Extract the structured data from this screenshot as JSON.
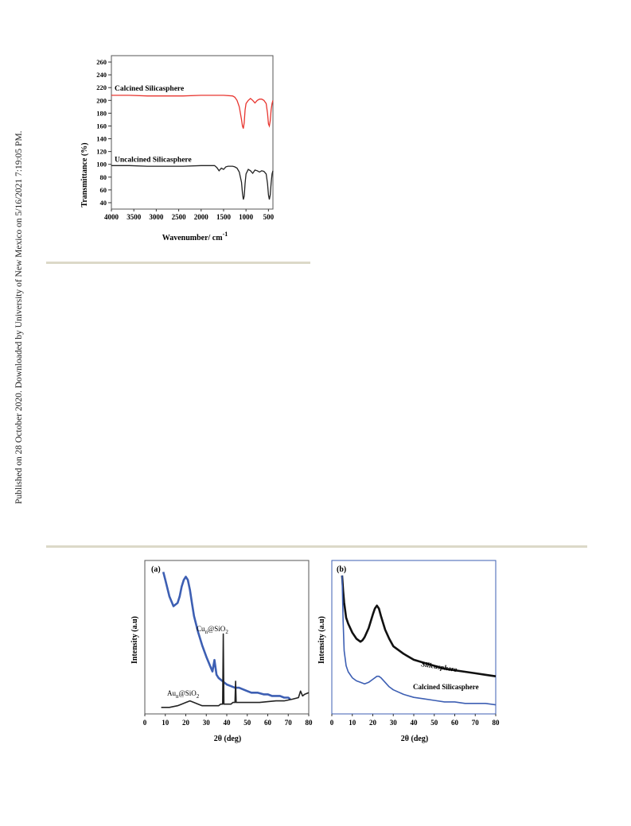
{
  "sidenote": "Published on 28 October 2020. Downloaded by University of New Mexico on 5/16/2021 7:19:05 PM.",
  "chart_data": [
    {
      "type": "line",
      "xlabel": "Wavenumber/ cm",
      "xlabel_sup": "-1",
      "ylabel": "Transmittance (%)",
      "xlim": [
        4000,
        400
      ],
      "ylim": [
        30,
        270
      ],
      "xticks": [
        4000,
        3500,
        3000,
        2500,
        2000,
        1500,
        1000,
        500
      ],
      "xtick_labels": [
        "4000",
        "3500",
        "3000",
        "2500",
        "2000",
        "1500",
        "1000",
        "500"
      ],
      "yticks": [
        40,
        60,
        80,
        100,
        120,
        140,
        160,
        180,
        200,
        220,
        240,
        260
      ],
      "ytick_labels": [
        "40",
        "60",
        "80",
        "100",
        "120",
        "140",
        "160",
        "180",
        "200",
        "220",
        "240",
        "260"
      ],
      "grid": false,
      "series": [
        {
          "name": "Calcined Silicasphere",
          "color": "#e8352f",
          "x": [
            4000,
            3600,
            3200,
            2800,
            2400,
            2000,
            1700,
            1500,
            1300,
            1250,
            1200,
            1150,
            1100,
            1080,
            1060,
            1040,
            1020,
            1000,
            950,
            900,
            850,
            800,
            750,
            700,
            650,
            600,
            550,
            520,
            500,
            480,
            460,
            440,
            420,
            400
          ],
          "y": [
            208,
            208,
            207,
            207,
            207,
            208,
            208,
            208,
            207,
            205,
            200,
            190,
            170,
            160,
            156,
            165,
            185,
            195,
            200,
            203,
            200,
            196,
            200,
            202,
            202,
            200,
            195,
            180,
            163,
            160,
            168,
            185,
            195,
            200
          ]
        },
        {
          "name": "Uncalcined Silicasphere",
          "color": "#222222",
          "x": [
            4000,
            3600,
            3200,
            2800,
            2400,
            2000,
            1700,
            1650,
            1600,
            1550,
            1500,
            1450,
            1400,
            1300,
            1250,
            1200,
            1150,
            1100,
            1080,
            1060,
            1040,
            1020,
            1000,
            950,
            900,
            850,
            800,
            750,
            700,
            650,
            600,
            550,
            520,
            500,
            480,
            460,
            440,
            420,
            400
          ],
          "y": [
            98,
            98,
            97,
            97,
            97,
            98,
            98,
            95,
            90,
            94,
            92,
            96,
            97,
            97,
            96,
            94,
            88,
            72,
            55,
            45,
            50,
            70,
            85,
            92,
            90,
            86,
            91,
            90,
            88,
            90,
            89,
            85,
            70,
            52,
            45,
            52,
            70,
            85,
            90
          ]
        }
      ]
    },
    {
      "type": "line",
      "panel_label": "(a)",
      "xlabel": "2θ (deg)",
      "ylabel": "Intensity (a.u)",
      "xlim": [
        0,
        80
      ],
      "xticks": [
        0,
        10,
        20,
        30,
        40,
        50,
        60,
        70,
        80
      ],
      "xtick_labels": [
        "0",
        "10",
        "20",
        "30",
        "40",
        "50",
        "60",
        "70",
        "80"
      ],
      "grid": false,
      "series": [
        {
          "name_parts": [
            "Cu",
            "n",
            "@SiO",
            "2"
          ],
          "color": "#3d5fb3",
          "x": [
            9,
            10,
            12,
            14,
            16,
            17,
            18,
            19,
            20,
            21,
            22,
            23,
            24,
            26,
            28,
            30,
            32,
            33,
            34,
            35,
            36,
            38,
            40,
            42,
            44,
            46,
            48,
            50,
            52,
            55,
            58,
            60,
            62,
            64,
            66,
            68,
            70,
            71
          ],
          "y": [
            85,
            80,
            70,
            64,
            66,
            70,
            76,
            80,
            82,
            80,
            74,
            66,
            58,
            48,
            40,
            33,
            27,
            24,
            31,
            22,
            20,
            18,
            16,
            15,
            14,
            14,
            13,
            12,
            11,
            11,
            10,
            10,
            9,
            9,
            9,
            8,
            8,
            7
          ]
        },
        {
          "name_parts": [
            "Au",
            "n",
            "@SiO",
            "2"
          ],
          "color": "#222222",
          "x": [
            8,
            12,
            16,
            18,
            20,
            22,
            24,
            26,
            28,
            30,
            32,
            34,
            36,
            37,
            38,
            38.3,
            38.6,
            39,
            40,
            42,
            43,
            44,
            44.3,
            44.6,
            45,
            48,
            52,
            56,
            60,
            64,
            68,
            72,
            75,
            76,
            77,
            78,
            80
          ],
          "y": [
            2,
            2,
            3,
            4,
            5,
            6,
            5,
            4,
            3,
            3,
            3,
            3,
            3,
            4,
            4,
            47,
            4,
            4,
            4,
            4,
            5,
            5,
            18,
            5,
            5,
            5,
            5,
            5,
            5.5,
            6,
            6,
            7,
            8,
            12,
            9,
            10,
            11
          ]
        }
      ]
    },
    {
      "type": "line",
      "panel_label": "(b)",
      "xlabel": "2θ (deg)",
      "ylabel": "Intensity (a.u)",
      "xlim": [
        0,
        80
      ],
      "xticks": [
        0,
        10,
        20,
        30,
        40,
        50,
        60,
        70,
        80
      ],
      "xtick_labels": [
        "0",
        "10",
        "20",
        "30",
        "40",
        "50",
        "60",
        "70",
        "80"
      ],
      "grid": false,
      "series": [
        {
          "name": "Silicasphere",
          "color": "#111111",
          "x": [
            5,
            5.5,
            6,
            7,
            8,
            10,
            12,
            14,
            15,
            16,
            18,
            20,
            21,
            22,
            23,
            24,
            26,
            28,
            30,
            35,
            40,
            45,
            50,
            55,
            60,
            65,
            70,
            75,
            80
          ],
          "y": [
            90,
            80,
            72,
            62,
            58,
            52,
            48,
            46,
            47,
            49,
            55,
            64,
            68,
            70,
            68,
            63,
            54,
            48,
            43,
            38,
            34,
            32,
            30,
            28,
            27,
            26,
            25,
            24,
            23
          ]
        },
        {
          "name": "Calcined Silicasphere",
          "color": "#3d5fb3",
          "x": [
            5,
            5.5,
            6,
            7,
            8,
            10,
            12,
            14,
            16,
            18,
            20,
            22,
            23,
            24,
            26,
            28,
            30,
            35,
            40,
            45,
            50,
            55,
            60,
            65,
            70,
            75,
            80
          ],
          "y": [
            90,
            60,
            40,
            30,
            26,
            22,
            20,
            19,
            18,
            19,
            21,
            23,
            23,
            22,
            19,
            16,
            14,
            11,
            9,
            8,
            7,
            6,
            6,
            5,
            5,
            5,
            4
          ]
        }
      ]
    }
  ]
}
